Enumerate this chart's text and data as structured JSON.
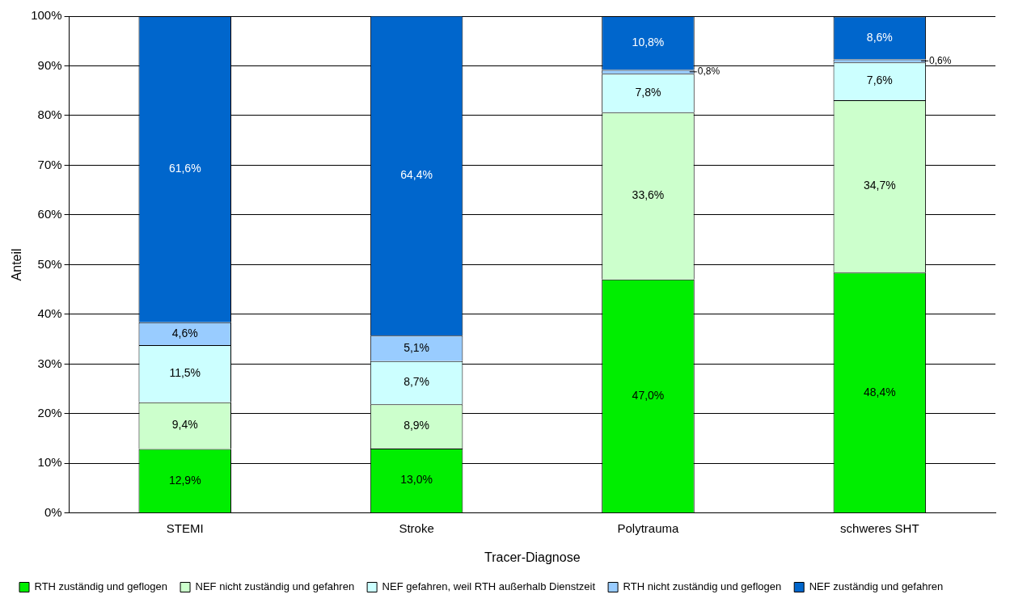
{
  "chart_data": {
    "type": "bar",
    "stacked": true,
    "xlabel": "Tracer-Diagnose",
    "ylabel": "Anteil",
    "categories": [
      "STEMI",
      "Stroke",
      "Polytrauma",
      "schweres SHT"
    ],
    "series": [
      {
        "name": "RTH zuständig und geflogen",
        "color": "#00ee00",
        "values": [
          12.9,
          13.0,
          47.0,
          48.4
        ],
        "value_labels": [
          "12,9%",
          "13,0%",
          "47,0%",
          "48,4%"
        ]
      },
      {
        "name": "NEF nicht zuständig und gefahren",
        "color": "#ccffcc",
        "values": [
          9.4,
          8.9,
          33.6,
          34.7
        ],
        "value_labels": [
          "9,4%",
          "8,9%",
          "33,6%",
          "34,7%"
        ]
      },
      {
        "name": "NEF gefahren, weil RTH außerhalb Dienstzeit",
        "color": "#ccffff",
        "values": [
          11.5,
          8.7,
          7.8,
          7.6
        ],
        "value_labels": [
          "11,5%",
          "8,7%",
          "7,8%",
          "7,6%"
        ]
      },
      {
        "name": "RTH nicht zuständig und geflogen",
        "color": "#99ccff",
        "values": [
          4.6,
          5.1,
          0.8,
          0.6
        ],
        "value_labels": [
          "4,6%",
          "5,1%",
          "0,8%",
          "0,6%"
        ]
      },
      {
        "name": "NEF zuständig und gefahren",
        "color": "#0066cc",
        "values": [
          61.6,
          64.4,
          10.8,
          8.6
        ],
        "value_labels": [
          "61,6%",
          "64,4%",
          "10,8%",
          "8,6%"
        ]
      }
    ],
    "ylim": [
      0,
      100
    ],
    "yticks": [
      {
        "value": 0,
        "label": "0%"
      },
      {
        "value": 10,
        "label": "10%"
      },
      {
        "value": 20,
        "label": "20%"
      },
      {
        "value": 30,
        "label": "30%"
      },
      {
        "value": 40,
        "label": "40%"
      },
      {
        "value": 50,
        "label": "50%"
      },
      {
        "value": 60,
        "label": "60%"
      },
      {
        "value": 70,
        "label": "70%"
      },
      {
        "value": 80,
        "label": "80%"
      },
      {
        "value": 90,
        "label": "90%"
      },
      {
        "value": 100,
        "label": "100%"
      }
    ],
    "grid": "y",
    "legend": "bottom"
  }
}
